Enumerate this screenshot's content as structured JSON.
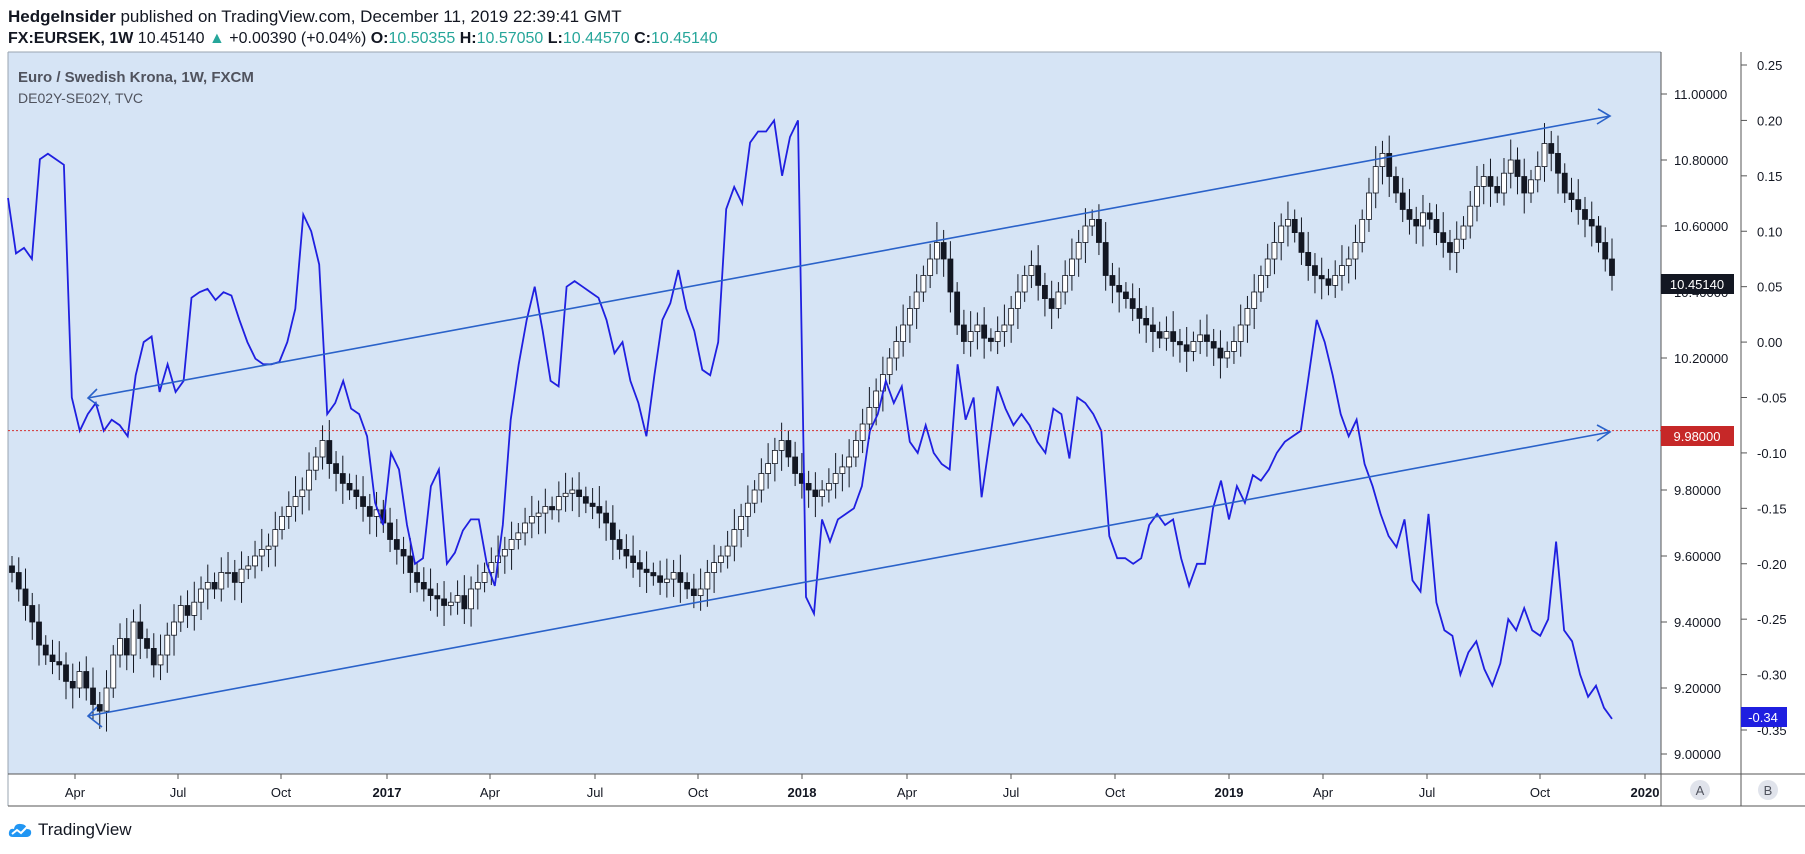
{
  "header": {
    "author": "HedgeInsider",
    "published_text": "published on TradingView.com, December 11, 2019 22:39:41 GMT",
    "symbol": "FX:EURSEK, 1W",
    "last": "10.45140",
    "change": "+0.00390 (+0.04%)",
    "open_label": "O:",
    "open": "10.50355",
    "high_label": "H:",
    "high": "10.57050",
    "low_label": "L:",
    "low": "10.44570",
    "close_label": "C:",
    "close": "10.45140"
  },
  "legend": {
    "main": "Euro / Swedish Krona, 1W, FXCM",
    "overlay": "DE02Y-SE02Y, TVC"
  },
  "footer": {
    "brand": "TradingView",
    "scale_a": "A",
    "scale_b": "B"
  },
  "colors": {
    "bg": "#d6e4f5",
    "overlay": "#1f1fe0",
    "trend": "#2a62c9",
    "price_line": "#d32f2f",
    "up": "#ffffff",
    "down": "#131722"
  },
  "chart_data": {
    "type": "candlestick",
    "right_axis": {
      "ticks": [
        9.0,
        9.2,
        9.4,
        9.6,
        9.8,
        10.2,
        10.4,
        10.6,
        10.8,
        11.0
      ],
      "range": [
        8.96,
        11.14
      ],
      "labels": [
        "9.00000",
        "9.20000",
        "9.40000",
        "9.60000",
        "9.80000",
        "10.20000",
        "10.40000",
        "10.60000",
        "10.80000",
        "11.00000"
      ]
    },
    "spread_axis": {
      "ticks": [
        0.25,
        0.2,
        0.15,
        0.1,
        0.05,
        0.0,
        -0.05,
        -0.1,
        -0.15,
        -0.2,
        -0.25,
        -0.3,
        -0.35
      ],
      "labels": [
        "0.25",
        "0.20",
        "0.15",
        "0.10",
        "0.05",
        "0.00",
        "-0.05",
        "-0.10",
        "-0.15",
        "-0.20",
        "-0.25",
        "-0.30",
        "-0.35"
      ]
    },
    "x_labels": [
      "Apr",
      "Jul",
      "Oct",
      "2017",
      "Apr",
      "Jul",
      "Oct",
      "2018",
      "Apr",
      "Jul",
      "Oct",
      "2019",
      "Apr",
      "Jul",
      "Oct",
      "2020"
    ],
    "last_price_label": "10.45140",
    "horizontal_level": {
      "value": 9.98,
      "label": "9.98000"
    },
    "overlay_last_label": "-0.34",
    "close_series": [
      9.55,
      9.5,
      9.45,
      9.4,
      9.33,
      9.3,
      9.28,
      9.27,
      9.22,
      9.2,
      9.25,
      9.2,
      9.15,
      9.13,
      9.2,
      9.3,
      9.35,
      9.3,
      9.4,
      9.35,
      9.32,
      9.27,
      9.3,
      9.36,
      9.4,
      9.45,
      9.42,
      9.46,
      9.5,
      9.52,
      9.5,
      9.55,
      9.55,
      9.52,
      9.56,
      9.57,
      9.6,
      9.62,
      9.63,
      9.68,
      9.72,
      9.75,
      9.78,
      9.8,
      9.86,
      9.9,
      9.95,
      9.88,
      9.85,
      9.82,
      9.8,
      9.78,
      9.75,
      9.72,
      9.74,
      9.7,
      9.65,
      9.62,
      9.6,
      9.55,
      9.52,
      9.5,
      9.48,
      9.47,
      9.45,
      9.46,
      9.48,
      9.44,
      9.5,
      9.52,
      9.55,
      9.58,
      9.6,
      9.62,
      9.65,
      9.67,
      9.7,
      9.72,
      9.73,
      9.75,
      9.74,
      9.78,
      9.79,
      9.8,
      9.78,
      9.76,
      9.75,
      9.73,
      9.7,
      9.65,
      9.62,
      9.6,
      9.58,
      9.56,
      9.55,
      9.54,
      9.52,
      9.53,
      9.55,
      9.52,
      9.5,
      9.48,
      9.5,
      9.55,
      9.58,
      9.6,
      9.63,
      9.68,
      9.72,
      9.76,
      9.8,
      9.85,
      9.88,
      9.92,
      9.95,
      9.9,
      9.85,
      9.82,
      9.8,
      9.78,
      9.8,
      9.82,
      9.85,
      9.87,
      9.9,
      9.95,
      10.0,
      10.05,
      10.1,
      10.15,
      10.2,
      10.25,
      10.3,
      10.35,
      10.4,
      10.45,
      10.5,
      10.55,
      10.5,
      10.4,
      10.3,
      10.25,
      10.28,
      10.3,
      10.26,
      10.25,
      10.28,
      10.3,
      10.35,
      10.4,
      10.45,
      10.48,
      10.42,
      10.38,
      10.35,
      10.4,
      10.45,
      10.5,
      10.55,
      10.6,
      10.62,
      10.55,
      10.45,
      10.42,
      10.4,
      10.38,
      10.35,
      10.32,
      10.3,
      10.28,
      10.26,
      10.28,
      10.25,
      10.24,
      10.22,
      10.25,
      10.27,
      10.25,
      10.23,
      10.2,
      10.22,
      10.25,
      10.3,
      10.35,
      10.4,
      10.45,
      10.5,
      10.55,
      10.6,
      10.62,
      10.58,
      10.52,
      10.48,
      10.45,
      10.44,
      10.42,
      10.45,
      10.48,
      10.5,
      10.55,
      10.62,
      10.7,
      10.78,
      10.82,
      10.75,
      10.7,
      10.65,
      10.62,
      10.6,
      10.64,
      10.62,
      10.58,
      10.55,
      10.52,
      10.56,
      10.6,
      10.66,
      10.72,
      10.75,
      10.72,
      10.7,
      10.76,
      10.8,
      10.75,
      10.7,
      10.74,
      10.78,
      10.85,
      10.82,
      10.76,
      10.7,
      10.68,
      10.65,
      10.62,
      10.6,
      10.55,
      10.5,
      10.45
    ]
  }
}
